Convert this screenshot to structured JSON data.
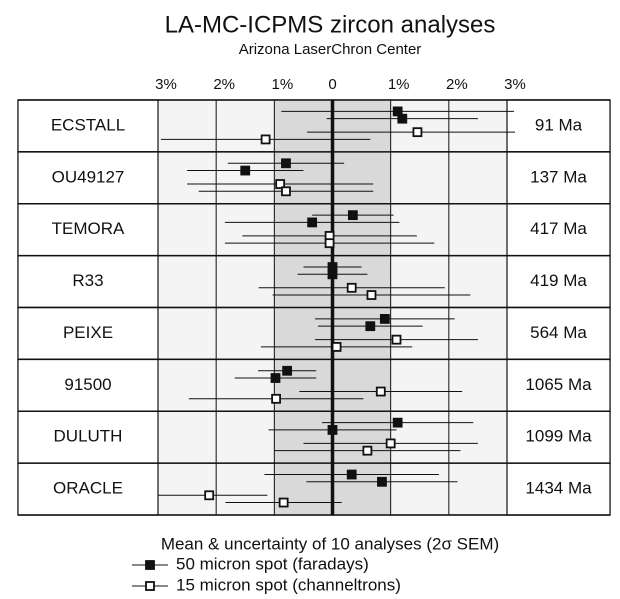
{
  "chart_data": {
    "type": "dot_errorbar",
    "title": "LA-MC-ICPMS zircon analyses",
    "subtitle": "Arizona LaserChron Center",
    "categories": [
      "ECSTALL",
      "OU49127",
      "TEMORA",
      "R33",
      "PEIXE",
      "91500",
      "DULUTH",
      "ORACLE"
    ],
    "ages": [
      "91 Ma",
      "137 Ma",
      "417 Ma",
      "419 Ma",
      "564 Ma",
      "1065 Ma",
      "1099 Ma",
      "1434 Ma"
    ],
    "xlim": [
      -3,
      3
    ],
    "xticks": [
      {
        "value": -3,
        "label": "3%"
      },
      {
        "value": -2,
        "label": "2%"
      },
      {
        "value": -1,
        "label": "1%"
      },
      0,
      {
        "value": 1,
        "label": "1%"
      },
      {
        "value": 2,
        "label": "2%"
      },
      {
        "value": 3,
        "label": "3%"
      }
    ],
    "legend_title": "Mean & uncertainty of 10 analyses (2σ SEM)",
    "series": [
      {
        "name": "50 micron spot (faradays)",
        "color": "#111111",
        "marker": "filled",
        "values": [
          [
            1.12,
            1.2
          ],
          [
            -0.8,
            -1.5
          ],
          [
            0.35,
            -0.35
          ],
          [
            0,
            0
          ],
          [
            0.9,
            0.65
          ],
          [
            -0.78,
            -0.98
          ],
          [
            1.12,
            0
          ],
          [
            0.33,
            0.85
          ]
        ],
        "errors": [
          [
            2.0,
            1.3
          ],
          [
            1.0,
            1.0
          ],
          [
            0.7,
            1.5
          ],
          [
            0.5,
            0.6
          ],
          [
            1.2,
            0.9
          ],
          [
            0.5,
            0.7
          ],
          [
            1.3,
            1.1
          ],
          [
            1.5,
            1.3
          ]
        ]
      },
      {
        "name": "15 micron spot (channeltrons)",
        "color": "#111111",
        "marker": "open",
        "values": [
          [
            1.46,
            -1.15
          ],
          [
            -0.9,
            -0.8
          ],
          [
            -0.05,
            -0.05
          ],
          [
            0.33,
            0.67
          ],
          [
            1.1,
            0.07
          ],
          [
            0.83,
            -0.97
          ],
          [
            1.0,
            0.6
          ],
          [
            -2.12,
            -0.84
          ]
        ],
        "errors": [
          [
            1.9,
            1.8
          ],
          [
            1.6,
            1.5
          ],
          [
            1.5,
            1.8
          ],
          [
            1.6,
            1.7
          ],
          [
            1.4,
            1.3
          ],
          [
            1.4,
            1.5
          ],
          [
            1.5,
            1.6
          ],
          [
            1.0,
            1.0
          ]
        ]
      }
    ]
  }
}
